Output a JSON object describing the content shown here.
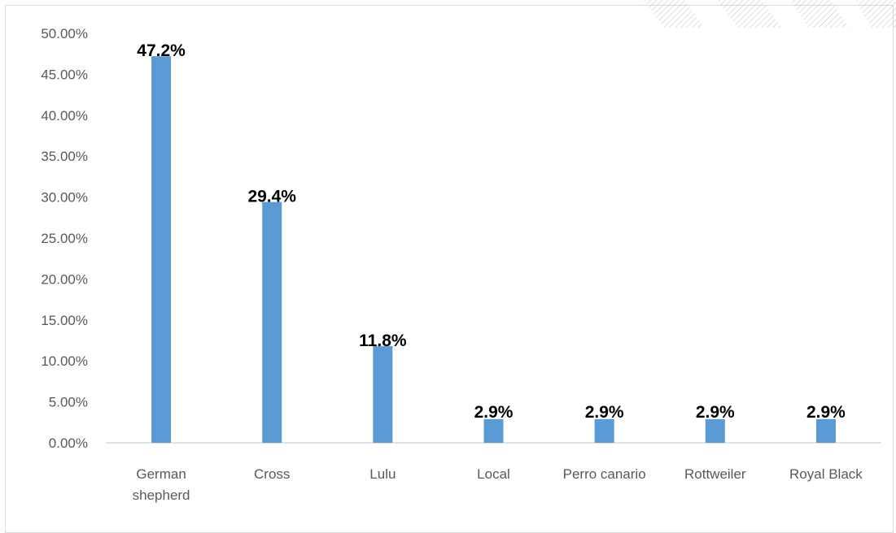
{
  "chart_data": {
    "type": "bar",
    "categories": [
      [
        "German",
        "shepherd"
      ],
      [
        "Cross"
      ],
      [
        "Lulu"
      ],
      [
        "Local"
      ],
      [
        "Perro canario"
      ],
      [
        "Rottweiler"
      ],
      [
        "Royal Black"
      ]
    ],
    "values": [
      47.2,
      29.4,
      11.8,
      2.9,
      2.9,
      2.9,
      2.9
    ],
    "data_labels": [
      "47.2%",
      "29.4%",
      "11.8%",
      "2.9%",
      "2.9%",
      "2.9%",
      "2.9%"
    ],
    "y_ticks": [
      "0.00%",
      "5.00%",
      "10.00%",
      "15.00%",
      "20.00%",
      "25.00%",
      "30.00%",
      "35.00%",
      "40.00%",
      "45.00%",
      "50.00%"
    ],
    "ylim": [
      0,
      50
    ],
    "grid": false,
    "legend": "none",
    "title": "",
    "xlabel": "",
    "ylabel": "",
    "colors": {
      "bar": "#5b9bd5",
      "axis": "#d9d9d9",
      "tick_text": "#595959",
      "label_text": "#000000"
    }
  }
}
